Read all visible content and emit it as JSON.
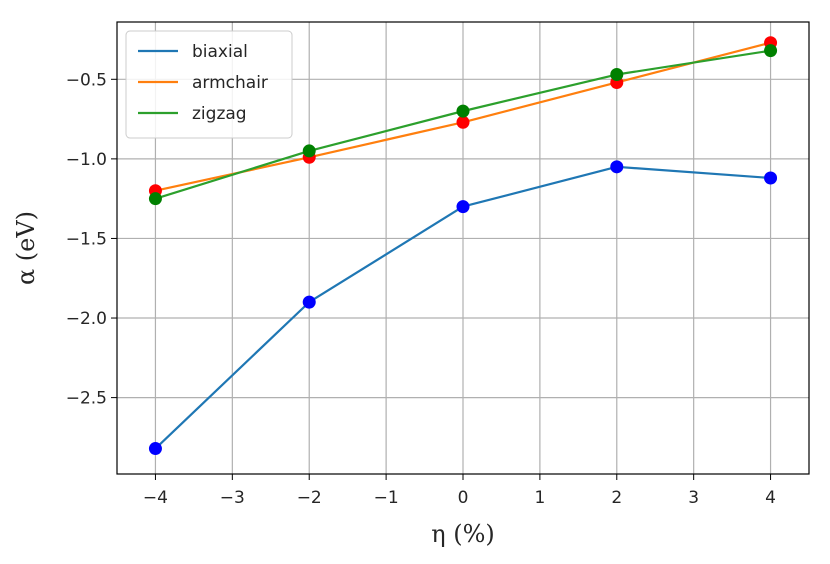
{
  "chart_data": {
    "type": "line",
    "xlabel": "η (%)",
    "ylabel": "α (eV)",
    "xlim": [
      -4.5,
      4.5
    ],
    "ylim": [
      -2.98,
      -0.14
    ],
    "xticks": [
      -4,
      -3,
      -2,
      -1,
      0,
      1,
      2,
      3,
      4
    ],
    "xtick_labels": [
      "−4",
      "−3",
      "−2",
      "−1",
      "0",
      "1",
      "2",
      "3",
      "4"
    ],
    "yticks": [
      -2.5,
      -2.0,
      -1.5,
      -1.0,
      -0.5
    ],
    "ytick_labels": [
      "−2.5",
      "−2.0",
      "−1.5",
      "−1.0",
      "−0.5"
    ],
    "grid": true,
    "legend_position": "top-left",
    "x": [
      -4,
      -2,
      0,
      2,
      4
    ],
    "series": [
      {
        "name": "biaxial",
        "values": [
          -2.82,
          -1.9,
          -1.3,
          -1.05,
          -1.12
        ],
        "line_color": "#1f77b4",
        "marker_color": "#0000ff"
      },
      {
        "name": "armchair",
        "values": [
          -1.2,
          -0.99,
          -0.77,
          -0.52,
          -0.27
        ],
        "line_color": "#ff7f0e",
        "marker_color": "#ff0000"
      },
      {
        "name": "zigzag",
        "values": [
          -1.25,
          -0.95,
          -0.7,
          -0.47,
          -0.32
        ],
        "line_color": "#2ca02c",
        "marker_color": "#008000"
      }
    ]
  }
}
